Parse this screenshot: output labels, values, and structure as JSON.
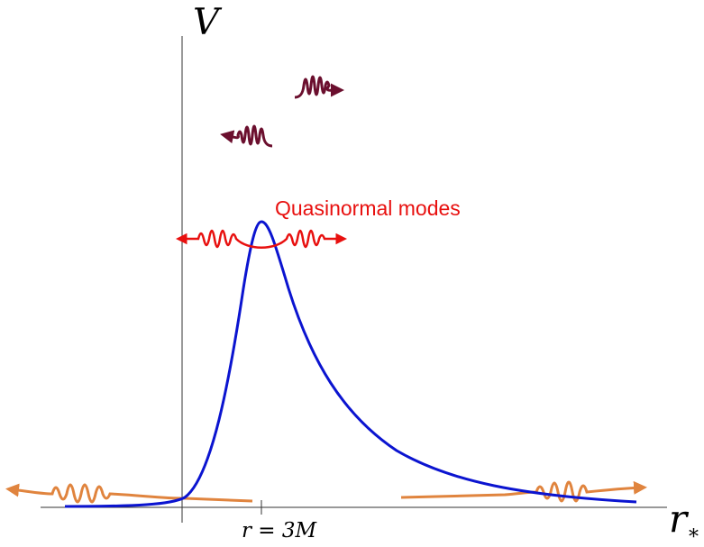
{
  "axes": {
    "y_label": "V",
    "x_label": "r",
    "x_label_subscript": "*"
  },
  "annotations": {
    "peak_label": "Quasinormal modes",
    "peak_position": "r = 3M"
  }
}
